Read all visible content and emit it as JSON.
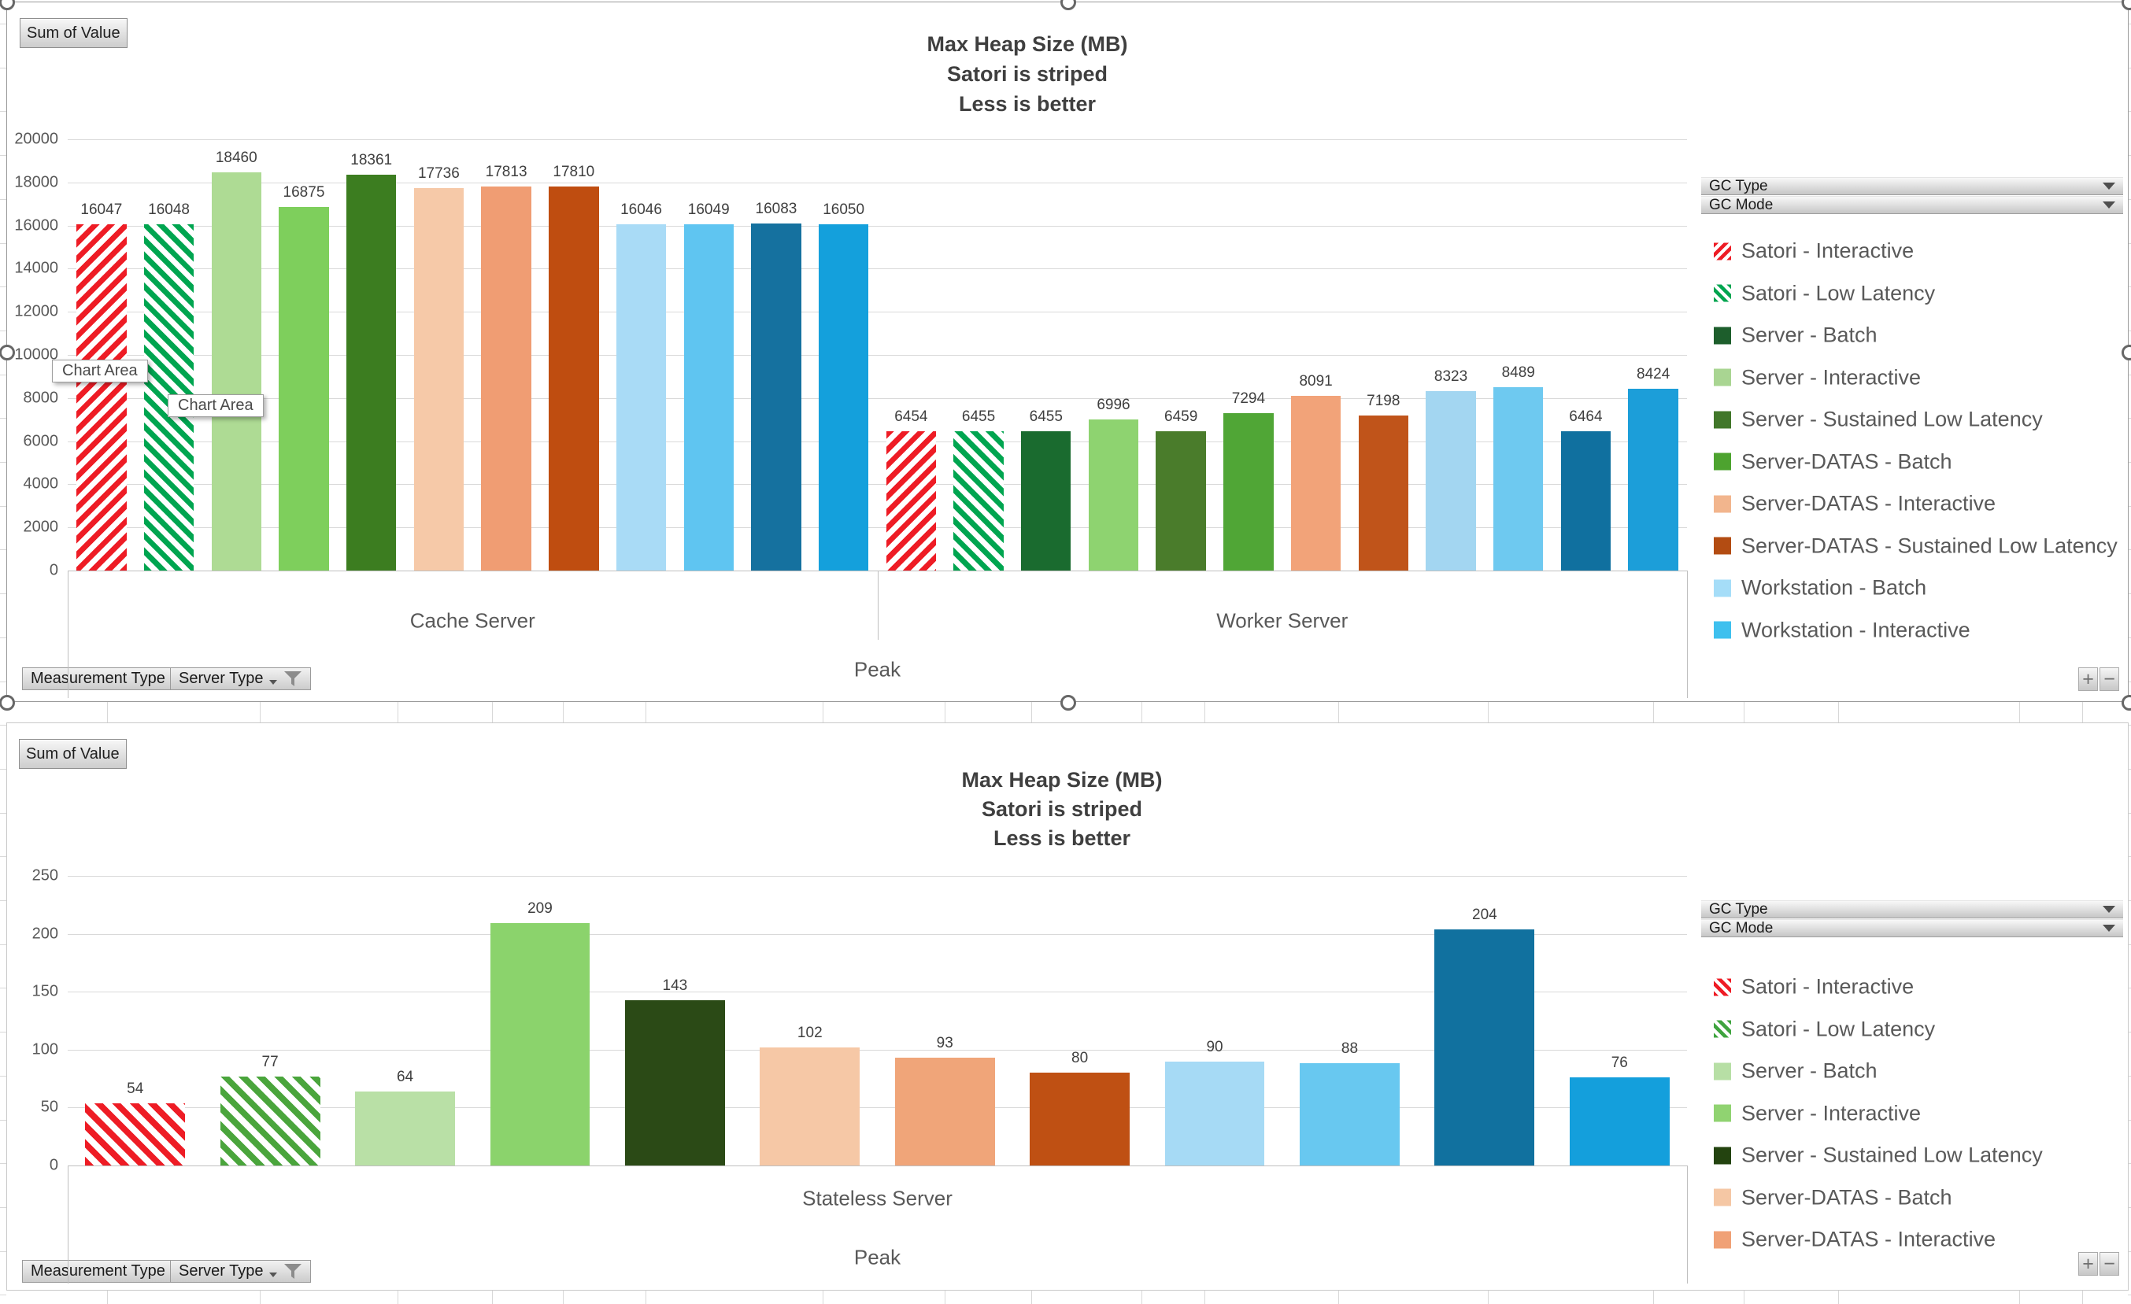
{
  "charts": [
    {
      "value_field_button": "Sum of Value",
      "title_lines": [
        "Max Heap Size (MB)",
        "Satori is striped",
        "Less is better"
      ],
      "axis_filter_buttons": [
        "Measurement  Type",
        "Server Type"
      ],
      "legend_dropdowns": [
        "GC Type",
        "GC Mode"
      ],
      "zoom_buttons": [
        "+",
        "−"
      ],
      "tooltips": [
        "Chart Area",
        "Chart Area"
      ],
      "chart_data": {
        "type": "bar",
        "title": "Max Heap Size (MB) / Satori is striped / Less is better",
        "ylabel": "",
        "xlabel": "Peak",
        "ylim": [
          0,
          20000
        ],
        "ytick_step": 2000,
        "ytick_labels": [
          "0",
          "2000",
          "4000",
          "6000",
          "8000",
          "10000",
          "12000",
          "14000",
          "16000",
          "18000",
          "20000"
        ],
        "grid": true,
        "legend_position": "right",
        "outer_category": "Peak",
        "groups": [
          {
            "category": "Cache Server",
            "bars": [
              {
                "value": 16047,
                "color": "#ee1c25",
                "striped": true,
                "angle": 135
              },
              {
                "value": 16048,
                "color": "#00a550",
                "striped": true,
                "angle": 45
              },
              {
                "value": 18460,
                "color": "#aedb94"
              },
              {
                "value": 16875,
                "color": "#7ecf5c"
              },
              {
                "value": 18361,
                "color": "#3c7d20"
              },
              {
                "value": 17736,
                "color": "#f6c9a8"
              },
              {
                "value": 17813,
                "color": "#f09d73"
              },
              {
                "value": 17810,
                "color": "#bf4d10"
              },
              {
                "value": 16046,
                "color": "#a9dbf6"
              },
              {
                "value": 16049,
                "color": "#5fc5f1"
              },
              {
                "value": 16083,
                "color": "#15719f"
              },
              {
                "value": 16050,
                "color": "#14a0dc"
              }
            ]
          },
          {
            "category": "Worker Server",
            "bars": [
              {
                "value": 6454,
                "color": "#ee1c25",
                "striped": true,
                "angle": 135
              },
              {
                "value": 6455,
                "color": "#00a550",
                "striped": true,
                "angle": 45
              },
              {
                "value": 6455,
                "color": "#1a6b2f"
              },
              {
                "value": 6996,
                "color": "#8ed370"
              },
              {
                "value": 6459,
                "color": "#4a7c2b"
              },
              {
                "value": 7294,
                "color": "#50a636"
              },
              {
                "value": 8091,
                "color": "#f2a379"
              },
              {
                "value": 7198,
                "color": "#c0541a"
              },
              {
                "value": 8323,
                "color": "#a3d6f1"
              },
              {
                "value": 8489,
                "color": "#6ec9f0"
              },
              {
                "value": 6464,
                "color": "#10709f"
              },
              {
                "value": 8424,
                "color": "#1c9ed9"
              }
            ]
          }
        ],
        "legend": [
          {
            "label": "Satori - Interactive",
            "color": "#ee1c25",
            "striped": true,
            "angle": 135
          },
          {
            "label": "Satori - Low Latency",
            "color": "#00a550",
            "striped": true,
            "angle": 45
          },
          {
            "label": "Server - Batch",
            "color": "#1d5e2c"
          },
          {
            "label": "Server - Interactive",
            "color": "#a9d592"
          },
          {
            "label": "Server - Sustained Low Latency",
            "color": "#41772a"
          },
          {
            "label": "Server-DATAS - Batch",
            "color": "#4da32f"
          },
          {
            "label": "Server-DATAS - Interactive",
            "color": "#f2b58d"
          },
          {
            "label": "Server-DATAS - Sustained Low Latency",
            "color": "#b34c12"
          },
          {
            "label": "Workstation - Batch",
            "color": "#a5ddf8"
          },
          {
            "label": "Workstation - Interactive",
            "color": "#3fc0ee"
          }
        ]
      }
    },
    {
      "value_field_button": "Sum of Value",
      "title_lines": [
        "Max Heap Size (MB)",
        "Satori is striped",
        "Less is better"
      ],
      "axis_filter_buttons": [
        "Measurement  Type",
        "Server Type"
      ],
      "legend_dropdowns": [
        "GC Type",
        "GC Mode"
      ],
      "zoom_buttons": [
        "+",
        "−"
      ],
      "tooltips": [],
      "chart_data": {
        "type": "bar",
        "title": "Max Heap Size (MB) / Satori is striped / Less is better",
        "ylabel": "",
        "xlabel": "Peak",
        "ylim": [
          0,
          250
        ],
        "ytick_step": 50,
        "ytick_labels": [
          "0",
          "50",
          "100",
          "150",
          "200",
          "250"
        ],
        "grid": true,
        "legend_position": "right",
        "outer_category": "Peak",
        "groups": [
          {
            "category": "Stateless Server",
            "bars": [
              {
                "value": 54,
                "color": "#ee1c25",
                "striped": true,
                "angle": 45
              },
              {
                "value": 77,
                "color": "#4aa53c",
                "striped": true,
                "angle": 45
              },
              {
                "value": 64,
                "color": "#b9e0a6"
              },
              {
                "value": 209,
                "color": "#8bd36c"
              },
              {
                "value": 143,
                "color": "#2b4a16"
              },
              {
                "value": 102,
                "color": "#f6c8a6"
              },
              {
                "value": 93,
                "color": "#f0a579"
              },
              {
                "value": 80,
                "color": "#bf5013"
              },
              {
                "value": 90,
                "color": "#a6daf5"
              },
              {
                "value": 88,
                "color": "#68c8f0"
              },
              {
                "value": 204,
                "color": "#11719f"
              },
              {
                "value": 76,
                "color": "#149fdc"
              }
            ]
          }
        ],
        "legend": [
          {
            "label": "Satori - Interactive",
            "color": "#ee1c25",
            "striped": true,
            "angle": 45
          },
          {
            "label": "Satori - Low Latency",
            "color": "#3fa43f",
            "striped": true,
            "angle": 45
          },
          {
            "label": "Server - Batch",
            "color": "#b7dfa5"
          },
          {
            "label": "Server - Interactive",
            "color": "#90d371"
          },
          {
            "label": "Server - Sustained Low Latency",
            "color": "#23430f"
          },
          {
            "label": "Server-DATAS - Batch",
            "color": "#f5c7a4"
          },
          {
            "label": "Server-DATAS - Interactive",
            "color": "#f0a176"
          }
        ]
      }
    }
  ]
}
